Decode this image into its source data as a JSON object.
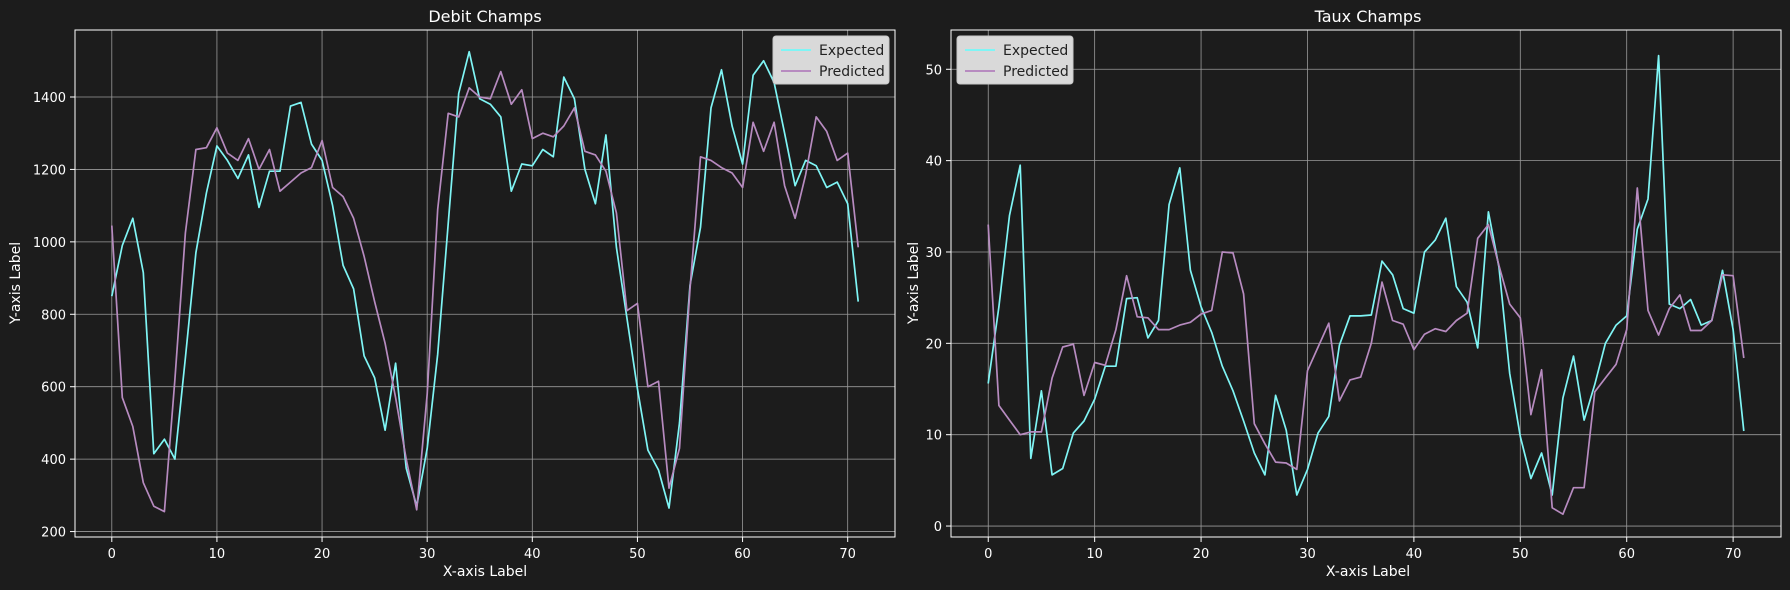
{
  "chart_data": [
    {
      "type": "line",
      "title": "Debit Champs",
      "xlabel": "X-axis Label",
      "ylabel": "Y-axis Label",
      "xlim": [
        -3.5,
        74.5
      ],
      "ylim": [
        185,
        1585
      ],
      "xticks": [
        0,
        10,
        20,
        30,
        40,
        50,
        60,
        70
      ],
      "yticks": [
        200,
        400,
        600,
        800,
        1000,
        1200,
        1400
      ],
      "grid": true,
      "legend_position": "top-right",
      "x": [
        0,
        1,
        2,
        3,
        4,
        5,
        6,
        7,
        8,
        9,
        10,
        11,
        12,
        13,
        14,
        15,
        16,
        17,
        18,
        19,
        20,
        21,
        22,
        23,
        24,
        25,
        26,
        27,
        28,
        29,
        30,
        31,
        32,
        33,
        34,
        35,
        36,
        37,
        38,
        39,
        40,
        41,
        42,
        43,
        44,
        45,
        46,
        47,
        48,
        49,
        50,
        51,
        52,
        53,
        54,
        55,
        56,
        57,
        58,
        59,
        60,
        61,
        62,
        63,
        64,
        65,
        66,
        67,
        68,
        69,
        70,
        71
      ],
      "series": [
        {
          "name": "Expected",
          "color": "#7ff5f5",
          "values": [
            850,
            990,
            1065,
            915,
            415,
            455,
            400,
            680,
            970,
            1135,
            1265,
            1225,
            1175,
            1240,
            1095,
            1195,
            1195,
            1375,
            1385,
            1270,
            1225,
            1100,
            935,
            870,
            685,
            625,
            480,
            665,
            375,
            270,
            430,
            690,
            1050,
            1410,
            1525,
            1395,
            1380,
            1345,
            1140,
            1215,
            1210,
            1255,
            1235,
            1455,
            1395,
            1200,
            1105,
            1295,
            985,
            790,
            595,
            425,
            370,
            265,
            500,
            880,
            1040,
            1370,
            1475,
            1320,
            1215,
            1460,
            1500,
            1440,
            1300,
            1155,
            1225,
            1210,
            1150,
            1165,
            1105,
            835
          ]
        },
        {
          "name": "Predicted",
          "color": "#b78bc0",
          "values": [
            1045,
            570,
            490,
            335,
            270,
            255,
            620,
            1025,
            1255,
            1260,
            1315,
            1245,
            1225,
            1285,
            1200,
            1255,
            1140,
            1165,
            1190,
            1205,
            1280,
            1150,
            1125,
            1065,
            960,
            835,
            720,
            570,
            400,
            260,
            580,
            1090,
            1355,
            1345,
            1425,
            1400,
            1395,
            1470,
            1380,
            1420,
            1285,
            1300,
            1290,
            1320,
            1370,
            1250,
            1240,
            1195,
            1080,
            810,
            830,
            600,
            615,
            320,
            430,
            870,
            1235,
            1225,
            1205,
            1190,
            1150,
            1330,
            1250,
            1330,
            1155,
            1065,
            1185,
            1345,
            1305,
            1225,
            1245,
            985
          ]
        }
      ]
    },
    {
      "type": "line",
      "title": "Taux Champs",
      "xlabel": "X-axis Label",
      "ylabel": "Y-axis Label",
      "xlim": [
        -3.5,
        74.5
      ],
      "ylim": [
        -1.2,
        54.3
      ],
      "xticks": [
        0,
        10,
        20,
        30,
        40,
        50,
        60,
        70
      ],
      "yticks": [
        0,
        10,
        20,
        30,
        40,
        50
      ],
      "grid": true,
      "legend_position": "top-left",
      "x": [
        0,
        1,
        2,
        3,
        4,
        5,
        6,
        7,
        8,
        9,
        10,
        11,
        12,
        13,
        14,
        15,
        16,
        17,
        18,
        19,
        20,
        21,
        22,
        23,
        24,
        25,
        26,
        27,
        28,
        29,
        30,
        31,
        32,
        33,
        34,
        35,
        36,
        37,
        38,
        39,
        40,
        41,
        42,
        43,
        44,
        45,
        46,
        47,
        48,
        49,
        50,
        51,
        52,
        53,
        54,
        55,
        56,
        57,
        58,
        59,
        60,
        61,
        62,
        63,
        64,
        65,
        66,
        67,
        68,
        69,
        70,
        71
      ],
      "series": [
        {
          "name": "Expected",
          "color": "#7ff5f5",
          "values": [
            15.6,
            24,
            34,
            39.5,
            7.4,
            14.8,
            5.6,
            6.3,
            10.2,
            11.5,
            13.9,
            17.5,
            17.5,
            24.9,
            25,
            20.6,
            22.5,
            35.2,
            39.2,
            28,
            24,
            21.2,
            17.5,
            14.8,
            11.5,
            8,
            5.6,
            14.3,
            10.5,
            3.4,
            6.2,
            10.2,
            12,
            19.8,
            23,
            23,
            23.1,
            29,
            27.5,
            23.8,
            23.3,
            30,
            31.3,
            33.7,
            26.2,
            24.5,
            19.5,
            34.4,
            28.3,
            16.7,
            9.8,
            5.2,
            8,
            3.4,
            14,
            18.6,
            11.6,
            15.5,
            20,
            22,
            23,
            32.5,
            35.8,
            51.5,
            24.3,
            23.8,
            24.8,
            22,
            22.5,
            28,
            21.5,
            10.4
          ]
        },
        {
          "name": "Predicted",
          "color": "#b78bc0",
          "values": [
            33,
            13.2,
            11.6,
            10,
            10.3,
            10.3,
            16.2,
            19.6,
            19.9,
            14.3,
            17.9,
            17.6,
            21.5,
            27.4,
            22.9,
            22.8,
            21.5,
            21.5,
            22,
            22.3,
            23.2,
            23.6,
            30,
            29.9,
            25.4,
            11.2,
            9,
            7,
            6.9,
            6.2,
            17,
            19.6,
            22.2,
            13.7,
            16,
            16.3,
            20,
            26.7,
            22.5,
            22.1,
            19.3,
            21,
            21.6,
            21.3,
            22.5,
            23.3,
            31.5,
            33,
            28.5,
            24.3,
            22.8,
            12.2,
            17.1,
            2,
            1.3,
            4.2,
            4.2,
            14.7,
            16.2,
            17.7,
            21.5,
            37,
            23.6,
            20.9,
            23.8,
            25.3,
            21.4,
            21.4,
            22.5,
            27.5,
            27.4,
            18.4
          ]
        }
      ]
    }
  ]
}
